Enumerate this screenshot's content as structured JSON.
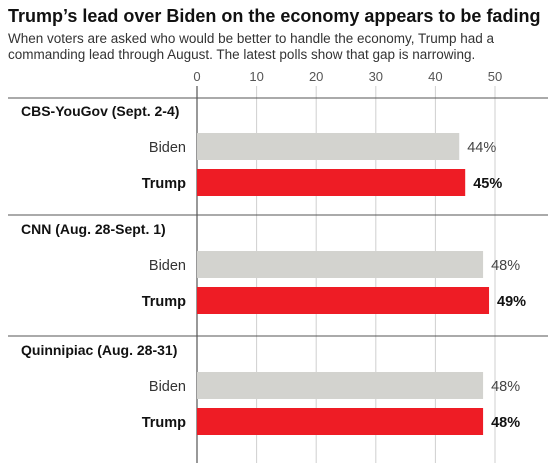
{
  "chart_data": {
    "type": "bar",
    "orientation": "horizontal",
    "title": "Trump’s lead over Biden on the economy appears to be fading",
    "subtitle": "When voters are asked who would be better to handle the economy, Trump had a commanding lead through August. The latest polls show that gap is narrowing.",
    "xlim": [
      0,
      50
    ],
    "xticks": [
      "0",
      "10",
      "20",
      "30",
      "40",
      "50"
    ],
    "grid": true,
    "colors": {
      "Biden": "#d3d3cf",
      "Trump": "#ee1c25"
    },
    "groups": [
      {
        "name": "CBS-YouGov (Sept. 2-4)",
        "bars": [
          {
            "candidate": "Biden",
            "value": 44,
            "label": "44%"
          },
          {
            "candidate": "Trump",
            "value": 45,
            "label": "45%"
          }
        ]
      },
      {
        "name": "CNN (Aug. 28-Sept. 1)",
        "bars": [
          {
            "candidate": "Biden",
            "value": 48,
            "label": "48%"
          },
          {
            "candidate": "Trump",
            "value": 49,
            "label": "49%"
          }
        ]
      },
      {
        "name": "Quinnipiac (Aug. 28-31)",
        "bars": [
          {
            "candidate": "Biden",
            "value": 48,
            "label": "48%"
          },
          {
            "candidate": "Trump",
            "value": 48,
            "label": "48%"
          }
        ]
      }
    ]
  }
}
